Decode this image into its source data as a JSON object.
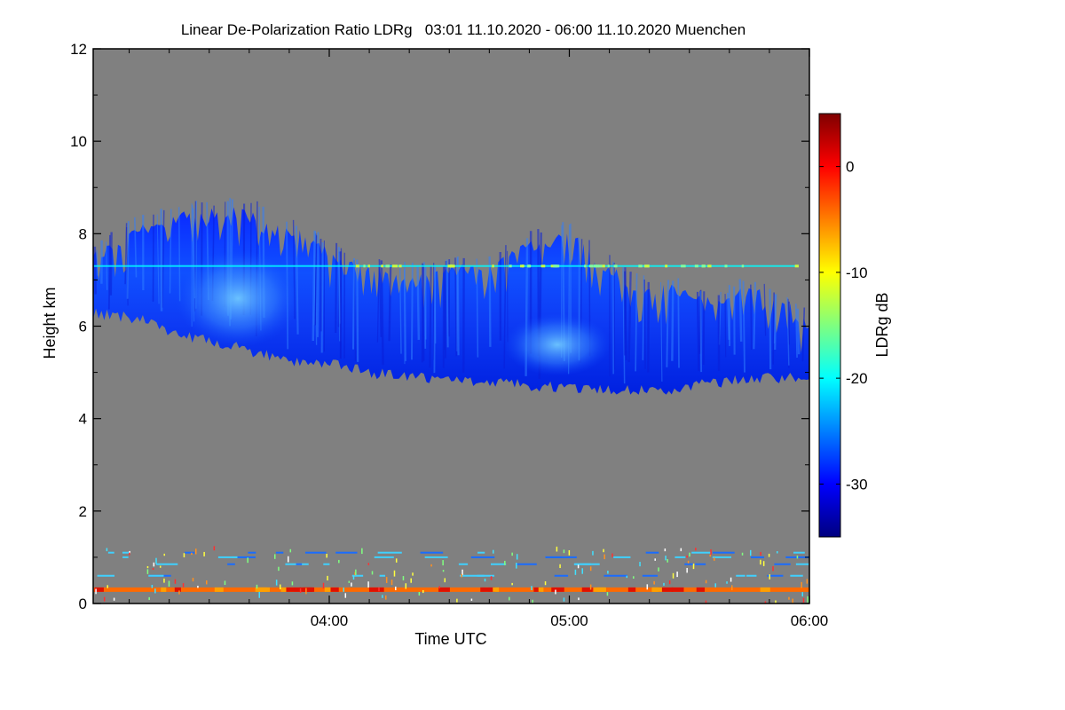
{
  "chart_data": {
    "type": "heatmap",
    "title": "Linear De-Polarization Ratio LDRg   03:01 11.10.2020 - 06:00 11.10.2020 Muenchen",
    "xlabel": "Time UTC",
    "ylabel": "Height km",
    "x_range_utc": [
      "03:01",
      "06:00"
    ],
    "xlim_hours": [
      3.0167,
      6.0
    ],
    "ylim_km": [
      0,
      12
    ],
    "x_tick_labels": [
      "04:00",
      "05:00",
      "06:00"
    ],
    "x_tick_values_hours": [
      4,
      5,
      6
    ],
    "y_tick_values": [
      0,
      2,
      4,
      6,
      8,
      10,
      12
    ],
    "y_tick_labels": [
      "0",
      "2",
      "4",
      "6",
      "8",
      "10",
      "12"
    ],
    "colorbar": {
      "label": "LDRg dB",
      "range_db": [
        -35,
        5
      ],
      "tick_values": [
        0,
        -10,
        -20,
        -30
      ],
      "tick_labels": [
        "0",
        "-10",
        "-20",
        "-30"
      ],
      "colormap": [
        "#00007f",
        "#0000ff",
        "#007fff",
        "#00ffff",
        "#7fff7f",
        "#ffff00",
        "#ff7f00",
        "#ff0000",
        "#7f0000"
      ]
    },
    "background_color": "#808080",
    "cloud_layer": {
      "description_value_db": -30,
      "top_km": [
        [
          3.02,
          7.6
        ],
        [
          3.2,
          8.2
        ],
        [
          3.4,
          8.5
        ],
        [
          3.55,
          8.6
        ],
        [
          3.75,
          8.5
        ],
        [
          3.9,
          8.0
        ],
        [
          4.1,
          7.4
        ],
        [
          4.3,
          7.2
        ],
        [
          4.5,
          7.3
        ],
        [
          4.7,
          7.5
        ],
        [
          4.85,
          7.9
        ],
        [
          5.0,
          8.1
        ],
        [
          5.1,
          7.6
        ],
        [
          5.3,
          6.9
        ],
        [
          5.45,
          6.9
        ],
        [
          5.6,
          6.6
        ],
        [
          5.75,
          6.9
        ],
        [
          5.9,
          6.6
        ],
        [
          6.0,
          6.1
        ]
      ],
      "base_km": [
        [
          3.02,
          6.4
        ],
        [
          3.2,
          6.3
        ],
        [
          3.4,
          5.9
        ],
        [
          3.6,
          5.7
        ],
        [
          3.8,
          5.4
        ],
        [
          4.0,
          5.3
        ],
        [
          4.2,
          5.1
        ],
        [
          4.4,
          5.0
        ],
        [
          4.6,
          4.95
        ],
        [
          4.8,
          4.85
        ],
        [
          5.0,
          4.8
        ],
        [
          5.2,
          4.75
        ],
        [
          5.4,
          4.75
        ],
        [
          5.6,
          4.9
        ],
        [
          5.8,
          5.0
        ],
        [
          6.0,
          5.0
        ]
      ],
      "embedded_max_db": -25
    },
    "artifact_line": {
      "height_km": 7.3,
      "from_hours": 3.02,
      "to_hours": 5.95,
      "value_db": -22
    },
    "ground_line": {
      "height_km": 0.3,
      "value_db": -3
    },
    "low_noise_layers_km": [
      0.6,
      0.85,
      1.0,
      1.1
    ]
  }
}
